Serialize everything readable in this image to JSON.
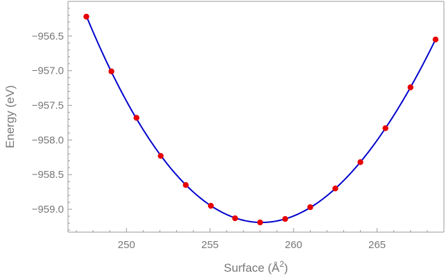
{
  "chart_data": {
    "type": "scatter",
    "xlabel_text": "Surface (Å",
    "xlabel_sup": "2",
    "xlabel_close": ")",
    "ylabel": "Energy (eV)",
    "xlim": [
      246.5,
      269
    ],
    "ylim": [
      -959.33,
      -956.0
    ],
    "x_ticks": [
      250,
      255,
      260,
      265
    ],
    "x_tick_labels": [
      "250",
      "255",
      "260",
      "265"
    ],
    "y_ticks": [
      -959.0,
      -958.5,
      -958.0,
      -957.5,
      -957.0,
      -956.5
    ],
    "y_tick_labels": [
      "−959.0",
      "−958.5",
      "−958.0",
      "−957.5",
      "−957.0",
      "−956.5"
    ],
    "points": [
      {
        "x": 247.6,
        "y": -956.22
      },
      {
        "x": 249.1,
        "y": -957.01
      },
      {
        "x": 250.6,
        "y": -957.68
      },
      {
        "x": 252.05,
        "y": -958.23
      },
      {
        "x": 253.55,
        "y": -958.65
      },
      {
        "x": 255.05,
        "y": -958.95
      },
      {
        "x": 256.5,
        "y": -959.13
      },
      {
        "x": 258.0,
        "y": -959.19
      },
      {
        "x": 259.5,
        "y": -959.14
      },
      {
        "x": 261.0,
        "y": -958.97
      },
      {
        "x": 262.5,
        "y": -958.7
      },
      {
        "x": 264.0,
        "y": -958.32
      },
      {
        "x": 265.5,
        "y": -957.83
      },
      {
        "x": 267.0,
        "y": -957.24
      },
      {
        "x": 268.5,
        "y": -956.55
      }
    ],
    "fit_line": {
      "type": "polynomial-fit",
      "color": "#0000cc"
    },
    "point_color": "#e60000",
    "grid": false,
    "legend": "none"
  }
}
